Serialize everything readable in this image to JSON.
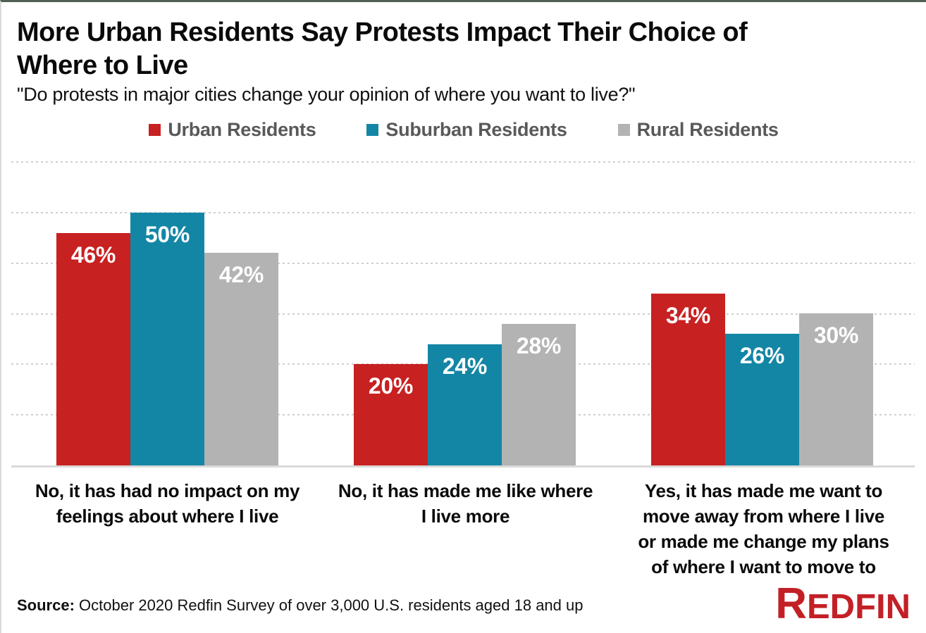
{
  "title": "More Urban Residents Say Protests Impact Their Choice of Where to Live",
  "subtitle": "\"Do protests in major cities change your opinion of where you want to live?\"",
  "legend": [
    {
      "label": "Urban Residents",
      "color": "#c82121"
    },
    {
      "label": "Suburban Residents",
      "color": "#1486a5"
    },
    {
      "label": "Rural Residents",
      "color": "#b3b3b3"
    }
  ],
  "chart_data": {
    "type": "bar",
    "categories": [
      "No, it has had no impact on my\nfeelings about where I live",
      "No, it has made me like where\nI live more",
      "Yes, it has made me want to\nmove away from where I live\nor made me change my plans\nof where I want to move to"
    ],
    "series": [
      {
        "name": "Urban Residents",
        "color": "#c82121",
        "values": [
          46,
          20,
          34
        ]
      },
      {
        "name": "Suburban Residents",
        "color": "#1486a5",
        "values": [
          50,
          24,
          26
        ]
      },
      {
        "name": "Rural Residents",
        "color": "#b3b3b3",
        "values": [
          42,
          28,
          30
        ]
      }
    ],
    "value_suffix": "%",
    "title": "More Urban Residents Say Protests Impact Their Choice of Where to Live",
    "xlabel": "",
    "ylabel": "",
    "ylim": [
      0,
      60
    ],
    "gridline_step": 10,
    "grid": true,
    "legend_position": "top",
    "value_labels": "inside-top"
  },
  "source": {
    "prefix": "Source:",
    "text": " October 2020 Redfin Survey of over 3,000 U.S. residents aged 18 and up"
  },
  "logo": {
    "first_letter": "R",
    "rest": "EDFIN",
    "color": "#c32026"
  }
}
